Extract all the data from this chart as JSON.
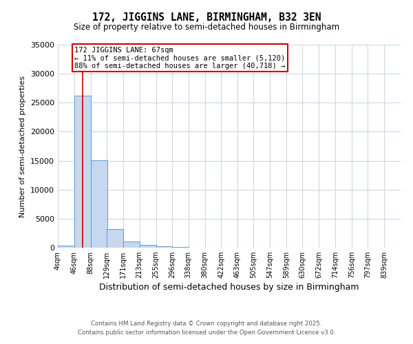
{
  "title": "172, JIGGINS LANE, BIRMINGHAM, B32 3EN",
  "subtitle": "Size of property relative to semi-detached houses in Birmingham",
  "xlabel": "Distribution of semi-detached houses by size in Birmingham",
  "ylabel": "Number of semi-detached properties",
  "annotation_line1": "172 JIGGINS LANE: 67sqm",
  "annotation_line2": "← 11% of semi-detached houses are smaller (5,120)",
  "annotation_line3": "88% of semi-detached houses are larger (40,718) →",
  "footer_line1": "Contains HM Land Registry data © Crown copyright and database right 2025.",
  "footer_line2": "Contains public sector information licensed under the Open Government Licence v3.0.",
  "property_size": 67,
  "bin_labels": [
    "4sqm",
    "46sqm",
    "88sqm",
    "129sqm",
    "171sqm",
    "213sqm",
    "255sqm",
    "296sqm",
    "338sqm",
    "380sqm",
    "422sqm",
    "463sqm",
    "505sqm",
    "547sqm",
    "589sqm",
    "630sqm",
    "672sqm",
    "714sqm",
    "756sqm",
    "797sqm",
    "839sqm"
  ],
  "bin_edges": [
    4,
    46,
    88,
    129,
    171,
    213,
    255,
    296,
    338,
    380,
    422,
    463,
    505,
    547,
    589,
    630,
    672,
    714,
    756,
    797,
    839
  ],
  "bar_values": [
    350,
    26200,
    15100,
    3200,
    1100,
    450,
    200,
    80,
    0,
    0,
    0,
    0,
    0,
    0,
    0,
    0,
    0,
    0,
    0,
    0
  ],
  "bar_color": "#c5d8ee",
  "bar_edge_color": "#5b9bd5",
  "red_line_color": "#cc0000",
  "annotation_box_edge_color": "#cc0000",
  "background_color": "#ffffff",
  "grid_color": "#c8d8e8",
  "ylim": [
    0,
    35000
  ],
  "yticks": [
    0,
    5000,
    10000,
    15000,
    20000,
    25000,
    30000,
    35000
  ],
  "figwidth": 6.0,
  "figheight": 5.0,
  "dpi": 100
}
